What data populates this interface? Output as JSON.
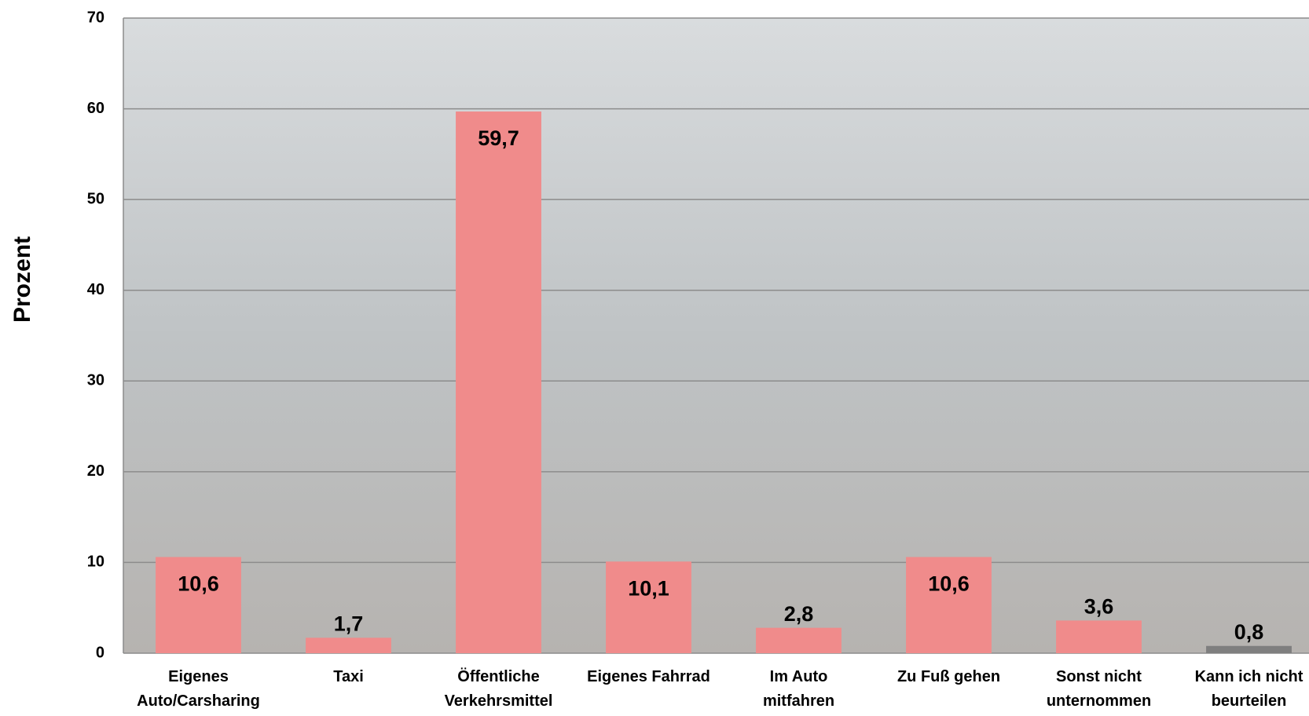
{
  "chart_data": {
    "type": "bar",
    "y_label": "Prozent",
    "categories": [
      "Eigenes\nAuto/Carsharing",
      "Taxi",
      "Öffentliche\nVerkehrsmittel",
      "Eigenes Fahrrad",
      "Im Auto\nmitfahren",
      "Zu Fuß gehen",
      "Sonst nicht\nunternommen",
      "Kann ich nicht\nbeurteilen"
    ],
    "values": [
      10.6,
      1.7,
      59.7,
      10.1,
      2.8,
      10.6,
      3.6,
      0.8
    ],
    "value_labels": [
      "10,6",
      "1,7",
      "59,7",
      "10,1",
      "2,8",
      "10,6",
      "3,6",
      "0,8"
    ],
    "colors": [
      "#f08b8b",
      "#f08b8b",
      "#f08b8b",
      "#f08b8b",
      "#f08b8b",
      "#f08b8b",
      "#f08b8b",
      "#7f7f7f"
    ],
    "ylim": [
      0,
      70
    ],
    "yticks": [
      0,
      10,
      20,
      30,
      40,
      50,
      60,
      70
    ],
    "grid": true
  }
}
